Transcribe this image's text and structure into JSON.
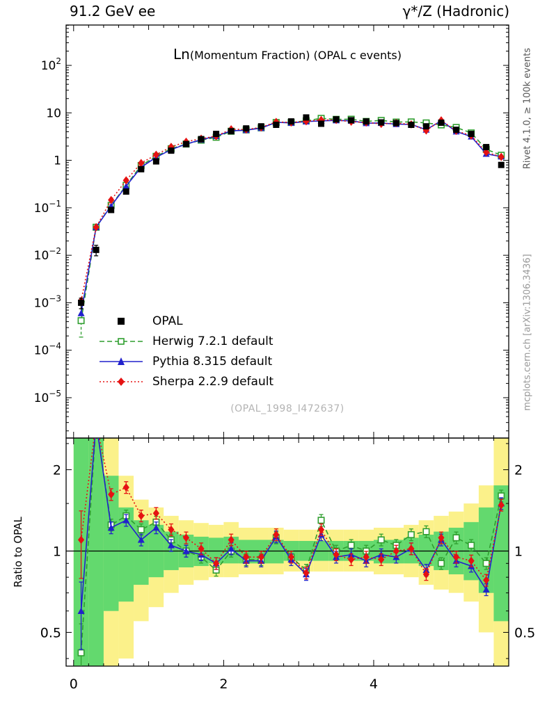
{
  "header": {
    "left": "91.2 GeV ee",
    "right": "γ*/Z (Hadronic)"
  },
  "title": {
    "prefix": "Ln",
    "rest": "(Momentum Fraction) (OPAL c events)"
  },
  "watermark": "(OPAL_1998_I472637)",
  "side_labels": {
    "left": "Ratio to OPAL",
    "right_top": "Rivet 4.1.0, ≥ 100k events",
    "right_bottom": "mcplots.cern.ch [arXiv:1306.3436]"
  },
  "legend": [
    {
      "key": "opal",
      "label": "OPAL",
      "marker": "square",
      "line": "none",
      "color": "#000000"
    },
    {
      "key": "herwig",
      "label": "Herwig 7.2.1 default",
      "marker": "osquare",
      "line": "dashed",
      "color": "#2f9e2f"
    },
    {
      "key": "pythia",
      "label": "Pythia 8.315 default",
      "marker": "triangle",
      "line": "solid",
      "color": "#2121cc"
    },
    {
      "key": "sherpa",
      "label": "Sherpa 2.2.9 default",
      "marker": "diamond",
      "line": "dotted",
      "color": "#e51212"
    }
  ],
  "colors": {
    "opal": "#000000",
    "herwig": "#2f9e2f",
    "pythia": "#2121cc",
    "sherpa": "#e51212",
    "band_yellow": "#fbf18a",
    "band_green": "#63d96e"
  },
  "chart_data": {
    "type": "line",
    "title": "Ln(Momentum Fraction) (OPAL c events)",
    "xlabel": "",
    "ylabel_top": "",
    "ylabel_bottom": "Ratio to OPAL",
    "xlim": [
      -0.1,
      5.8
    ],
    "bin_width": 0.2,
    "main_ylog": true,
    "main_loglim": [
      -5.85,
      2.85
    ],
    "ratio_ylog": true,
    "ratio_ylim": [
      0.375,
      2.62
    ],
    "axis": {
      "x_major_ticks": [
        0,
        2,
        4
      ],
      "ratio_ticks": [
        0.5,
        1,
        2
      ],
      "main_decades": [
        2,
        1,
        0,
        -1,
        -2,
        -3,
        -4,
        -5
      ]
    },
    "x": [
      0.1,
      0.3,
      0.5,
      0.7,
      0.9,
      1.1,
      1.3,
      1.5,
      1.7,
      1.9,
      2.1,
      2.3,
      2.5,
      2.7,
      2.9,
      3.1,
      3.3,
      3.5,
      3.7,
      3.9,
      4.1,
      4.3,
      4.5,
      4.7,
      4.9,
      5.1,
      5.3,
      5.5,
      5.7
    ],
    "series": {
      "opal": {
        "name": "OPAL",
        "y": [
          0.001,
          0.013,
          0.09,
          0.22,
          0.65,
          0.95,
          1.6,
          2.2,
          2.8,
          3.6,
          4.1,
          4.7,
          5.2,
          5.6,
          6.6,
          8.0,
          5.9,
          7.3,
          7.0,
          6.6,
          6.3,
          6.1,
          5.6,
          5.2,
          6.2,
          4.4,
          3.6,
          1.9,
          0.8
        ]
      },
      "herwig": {
        "name": "Herwig 7.2.1 default",
        "ratio": [
          0.42,
          3.0,
          1.25,
          1.35,
          1.2,
          1.28,
          1.1,
          1.0,
          0.95,
          0.85,
          1.0,
          0.93,
          0.93,
          1.12,
          0.95,
          0.85,
          1.3,
          1.0,
          1.05,
          1.0,
          1.1,
          1.05,
          1.15,
          1.18,
          0.9,
          1.12,
          1.05,
          0.9,
          1.6
        ]
      },
      "pythia": {
        "name": "Pythia 8.315 default",
        "ratio": [
          0.6,
          3.0,
          1.22,
          1.3,
          1.1,
          1.22,
          1.05,
          1.0,
          0.97,
          0.9,
          1.02,
          0.92,
          0.92,
          1.13,
          0.93,
          0.82,
          1.15,
          0.95,
          0.97,
          0.92,
          0.97,
          0.95,
          1.02,
          0.85,
          1.1,
          0.92,
          0.88,
          0.72,
          1.5
        ]
      },
      "sherpa": {
        "name": "Sherpa 2.2.9 default",
        "ratio": [
          1.1,
          3.0,
          1.62,
          1.72,
          1.35,
          1.38,
          1.2,
          1.12,
          1.02,
          0.9,
          1.1,
          0.95,
          0.95,
          1.15,
          0.95,
          0.83,
          1.2,
          0.97,
          0.93,
          0.95,
          0.93,
          1.0,
          1.02,
          0.82,
          1.12,
          0.95,
          0.92,
          0.78,
          1.48
        ]
      }
    },
    "bands": {
      "yellow": {
        "lo": [
          0.375,
          0.375,
          0.375,
          0.4,
          0.55,
          0.62,
          0.7,
          0.75,
          0.78,
          0.8,
          0.8,
          0.82,
          0.82,
          0.82,
          0.84,
          0.84,
          0.84,
          0.84,
          0.84,
          0.84,
          0.82,
          0.82,
          0.8,
          0.75,
          0.72,
          0.7,
          0.65,
          0.5,
          0.375
        ],
        "hi": [
          2.62,
          2.62,
          2.62,
          1.9,
          1.55,
          1.45,
          1.35,
          1.3,
          1.27,
          1.25,
          1.28,
          1.22,
          1.22,
          1.22,
          1.2,
          1.2,
          1.2,
          1.2,
          1.2,
          1.2,
          1.22,
          1.22,
          1.25,
          1.3,
          1.35,
          1.4,
          1.5,
          1.75,
          2.62
        ]
      },
      "green": {
        "lo": [
          0.375,
          0.375,
          0.6,
          0.65,
          0.75,
          0.8,
          0.85,
          0.87,
          0.88,
          0.9,
          0.9,
          0.9,
          0.9,
          0.9,
          0.92,
          0.92,
          0.92,
          0.92,
          0.92,
          0.92,
          0.9,
          0.9,
          0.9,
          0.88,
          0.85,
          0.82,
          0.78,
          0.7,
          0.55
        ],
        "hi": [
          2.62,
          2.62,
          1.9,
          1.45,
          1.3,
          1.25,
          1.18,
          1.15,
          1.13,
          1.12,
          1.13,
          1.1,
          1.1,
          1.1,
          1.09,
          1.09,
          1.09,
          1.09,
          1.09,
          1.09,
          1.1,
          1.1,
          1.12,
          1.15,
          1.18,
          1.22,
          1.28,
          1.45,
          1.75
        ]
      }
    }
  }
}
